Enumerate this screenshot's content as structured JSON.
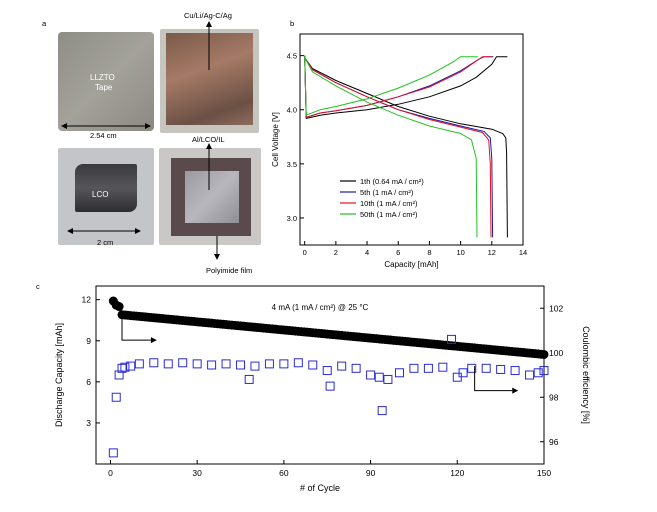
{
  "panel_a": {
    "letter": "a",
    "llzto_label_1": "LLZTO",
    "llzto_label_2": "Tape",
    "llzto_dim": "2.54 cm",
    "anode_label": "Cu/Li/Ag-C/Ag",
    "cathode_label": "Al/LCO/IL",
    "lco_label": "LCO",
    "lco_dim": "2 cm",
    "film_label": "Polyimide film"
  },
  "panel_b": {
    "letter": "b",
    "ylabel": "Cell Voltage [V]",
    "xlabel": "Capacity [mAh]",
    "xticks": [
      "0",
      "2",
      "4",
      "6",
      "8",
      "10",
      "12",
      "14"
    ],
    "yticks": [
      "3.0",
      "3.5",
      "4.0",
      "4.5"
    ],
    "legend": [
      {
        "text": "1th (0.64 mA / cm²)",
        "color": "#000000"
      },
      {
        "text": "5th (1 mA / cm²)",
        "color": "#1a1aa8"
      },
      {
        "text": "10th (1 mA / cm²)",
        "color": "#e0102a"
      },
      {
        "text": "50th (1 mA / cm²)",
        "color": "#22c122"
      }
    ]
  },
  "panel_c": {
    "letter": "c",
    "annotation": "4 mA (1 mA / cm²) @ 25 °C",
    "ylabel_left": "Discharge Capacity [mAh]",
    "ylabel_right": "Coulombic efficiency [%]",
    "xlabel": "# of Cycle",
    "xticks": [
      "0",
      "30",
      "60",
      "90",
      "120",
      "150"
    ],
    "yticks_left": [
      "3",
      "6",
      "9",
      "12"
    ],
    "yticks_right": [
      "96",
      "98",
      "100",
      "102"
    ]
  },
  "chart_data": [
    {
      "type": "line",
      "title": "",
      "xlabel": "Capacity [mAh]",
      "ylabel": "Cell Voltage [V]",
      "xlim": [
        -0.3,
        14
      ],
      "ylim": [
        2.75,
        4.7
      ],
      "series": [
        {
          "name": "1th (0.64 mA / cm²)",
          "color": "#000000",
          "charge": [
            [
              0,
              4.5
            ],
            [
              0.1,
              3.92
            ],
            [
              1,
              3.95
            ],
            [
              2,
              3.97
            ],
            [
              4,
              4.0
            ],
            [
              6,
              4.05
            ],
            [
              8,
              4.12
            ],
            [
              10,
              4.22
            ],
            [
              11,
              4.3
            ],
            [
              12,
              4.42
            ],
            [
              12.3,
              4.49
            ],
            [
              13,
              4.49
            ]
          ],
          "discharge": [
            [
              0,
              4.48
            ],
            [
              0.5,
              4.38
            ],
            [
              2,
              4.27
            ],
            [
              4,
              4.15
            ],
            [
              6,
              4.03
            ],
            [
              8,
              3.94
            ],
            [
              10,
              3.87
            ],
            [
              12,
              3.82
            ],
            [
              12.7,
              3.78
            ],
            [
              12.9,
              3.74
            ],
            [
              12.95,
              3.6
            ],
            [
              13,
              2.82
            ]
          ]
        },
        {
          "name": "5th (1 mA / cm²)",
          "color": "#1a1aa8",
          "charge": [
            [
              0,
              4.5
            ],
            [
              0.1,
              3.93
            ],
            [
              1,
              3.97
            ],
            [
              2,
              3.99
            ],
            [
              4,
              4.04
            ],
            [
              6,
              4.12
            ],
            [
              8,
              4.22
            ],
            [
              10,
              4.36
            ],
            [
              11.2,
              4.47
            ],
            [
              11.5,
              4.49
            ],
            [
              12.1,
              4.49
            ]
          ],
          "discharge": [
            [
              0,
              4.48
            ],
            [
              0.5,
              4.37
            ],
            [
              2,
              4.25
            ],
            [
              4,
              4.12
            ],
            [
              6,
              4.0
            ],
            [
              8,
              3.92
            ],
            [
              10,
              3.85
            ],
            [
              11.5,
              3.8
            ],
            [
              11.9,
              3.74
            ],
            [
              12.0,
              3.55
            ],
            [
              12.05,
              2.82
            ]
          ]
        },
        {
          "name": "10th (1 mA / cm²)",
          "color": "#e0102a",
          "charge": [
            [
              0,
              4.5
            ],
            [
              0.1,
              3.93
            ],
            [
              1,
              3.97
            ],
            [
              2,
              3.99
            ],
            [
              4,
              4.04
            ],
            [
              6,
              4.12
            ],
            [
              8,
              4.21
            ],
            [
              10,
              4.35
            ],
            [
              11.1,
              4.46
            ],
            [
              11.4,
              4.49
            ],
            [
              12.0,
              4.49
            ]
          ],
          "discharge": [
            [
              0,
              4.48
            ],
            [
              0.5,
              4.37
            ],
            [
              2,
              4.25
            ],
            [
              4,
              4.12
            ],
            [
              6,
              4.0
            ],
            [
              8,
              3.91
            ],
            [
              10,
              3.84
            ],
            [
              11.4,
              3.79
            ],
            [
              11.8,
              3.72
            ],
            [
              11.9,
              3.5
            ],
            [
              11.95,
              2.82
            ]
          ]
        },
        {
          "name": "50th (1 mA / cm²)",
          "color": "#22c122",
          "charge": [
            [
              0,
              4.5
            ],
            [
              0.1,
              3.95
            ],
            [
              1,
              4.0
            ],
            [
              2,
              4.03
            ],
            [
              4,
              4.1
            ],
            [
              6,
              4.2
            ],
            [
              8,
              4.32
            ],
            [
              9.5,
              4.44
            ],
            [
              10,
              4.49
            ],
            [
              11.1,
              4.49
            ]
          ],
          "discharge": [
            [
              0,
              4.48
            ],
            [
              0.5,
              4.35
            ],
            [
              2,
              4.22
            ],
            [
              4,
              4.07
            ],
            [
              6,
              3.95
            ],
            [
              8,
              3.85
            ],
            [
              10,
              3.78
            ],
            [
              10.7,
              3.72
            ],
            [
              11.0,
              3.55
            ],
            [
              11.05,
              2.82
            ]
          ]
        }
      ]
    },
    {
      "type": "scatter",
      "title": "",
      "xlabel": "# of Cycle",
      "ylabel": "Discharge Capacity [mAh]",
      "y2label": "Coulombic efficiency [%]",
      "xlim": [
        -5,
        150
      ],
      "ylim": [
        0,
        13
      ],
      "y2lim": [
        95,
        103
      ],
      "discharge_capacity": {
        "first": [
          [
            1,
            11.9
          ],
          [
            2,
            11.6
          ],
          [
            3,
            11.5
          ]
        ],
        "start": [
          4,
          10.9
        ],
        "end": [
          150,
          8.0
        ]
      },
      "coulombic_efficiency": [
        [
          1,
          95.5
        ],
        [
          2,
          98.0
        ],
        [
          3,
          99.0
        ],
        [
          4,
          99.3
        ],
        [
          5,
          99.35
        ],
        [
          7,
          99.4
        ],
        [
          10,
          99.5
        ],
        [
          15,
          99.55
        ],
        [
          20,
          99.5
        ],
        [
          25,
          99.55
        ],
        [
          30,
          99.5
        ],
        [
          35,
          99.45
        ],
        [
          40,
          99.5
        ],
        [
          45,
          99.45
        ],
        [
          48,
          98.8
        ],
        [
          50,
          99.4
        ],
        [
          55,
          99.5
        ],
        [
          60,
          99.5
        ],
        [
          65,
          99.55
        ],
        [
          70,
          99.45
        ],
        [
          75,
          99.2
        ],
        [
          76,
          98.5
        ],
        [
          80,
          99.4
        ],
        [
          85,
          99.3
        ],
        [
          90,
          99.0
        ],
        [
          93,
          98.9
        ],
        [
          94,
          97.4
        ],
        [
          96,
          98.8
        ],
        [
          100,
          99.1
        ],
        [
          105,
          99.3
        ],
        [
          110,
          99.3
        ],
        [
          115,
          99.35
        ],
        [
          118,
          100.6
        ],
        [
          120,
          98.9
        ],
        [
          122,
          99.1
        ],
        [
          125,
          99.3
        ],
        [
          130,
          99.3
        ],
        [
          135,
          99.25
        ],
        [
          140,
          99.2
        ],
        [
          145,
          99.0
        ],
        [
          148,
          99.1
        ],
        [
          150,
          99.2
        ]
      ]
    }
  ]
}
